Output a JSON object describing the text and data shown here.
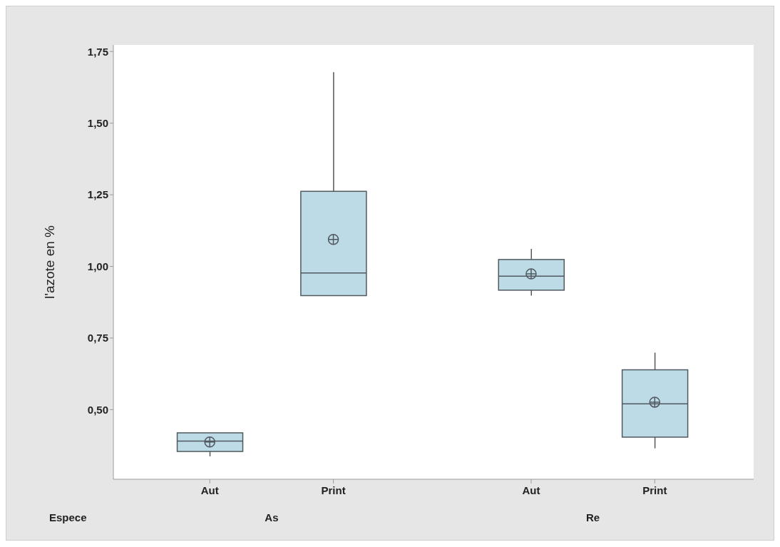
{
  "chart_data": {
    "type": "box",
    "categories": [
      "Aut",
      "Print",
      "Aut",
      "Print"
    ],
    "xlabel": "Espece",
    "ylabel": "l'azote en %",
    "annotations": [
      "As",
      "Re"
    ],
    "ylim": [
      0.257,
      1.773
    ],
    "yticks": [
      {
        "value": 0.5,
        "label": "0,50"
      },
      {
        "value": 0.75,
        "label": "0,75"
      },
      {
        "value": 1,
        "label": "1,00"
      },
      {
        "value": 1.25,
        "label": "1,25"
      },
      {
        "value": 1.5,
        "label": "1,50"
      },
      {
        "value": 1.75,
        "label": "1,75"
      }
    ],
    "series": [
      {
        "color": "#bddbe6",
        "boxes": [
          {
            "low": 0.337,
            "q1": 0.354,
            "median": 0.39,
            "q3": 0.419,
            "high": 0.419,
            "mean": 0.387
          },
          {
            "low": 0.898,
            "q1": 0.898,
            "median": 0.977,
            "q3": 1.262,
            "high": 1.678,
            "mean": 1.094
          },
          {
            "low": 0.898,
            "q1": 0.917,
            "median": 0.966,
            "q3": 1.024,
            "high": 1.061,
            "mean": 0.974
          },
          {
            "low": 0.365,
            "q1": 0.404,
            "median": 0.52,
            "q3": 0.639,
            "high": 0.699,
            "mean": 0.526
          }
        ]
      }
    ]
  }
}
